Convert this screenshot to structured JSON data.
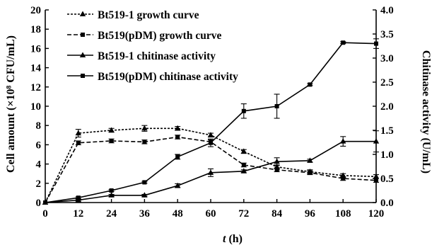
{
  "chart_data": {
    "type": "line",
    "x": [
      0,
      12,
      24,
      36,
      48,
      60,
      72,
      84,
      96,
      108,
      120
    ],
    "xlim": [
      0,
      120
    ],
    "xticks": [
      0,
      12,
      24,
      36,
      48,
      60,
      72,
      84,
      96,
      108,
      120
    ],
    "xlabel_italic": "t",
    "xlabel_rest": " (h)",
    "ylabel_left": "Cell amount (×10⁸ CFU/mL)",
    "ylim_left": [
      0,
      20
    ],
    "yticks_left": [
      "0",
      "2",
      "4",
      "6",
      "8",
      "10",
      "12",
      "14",
      "16",
      "18",
      "20"
    ],
    "ylabel_right": "Chitinase activity (U/mL)",
    "ylim_right": [
      0,
      4.0
    ],
    "yticks_right": [
      "0.0",
      "0.5",
      "1.0",
      "1.5",
      "2.0",
      "2.5",
      "3.0",
      "3.5",
      "4.0"
    ],
    "grid": false,
    "legend_position": "top-left",
    "series": [
      {
        "name": "Bt519-1 growth curve",
        "axis": "left",
        "style": "dashdot",
        "marker": "triangle",
        "values": [
          0,
          7.2,
          7.5,
          7.7,
          7.7,
          7.0,
          5.3,
          3.7,
          3.2,
          2.8,
          2.7
        ],
        "errors": [
          0,
          0.4,
          0.2,
          0.3,
          0.2,
          0.2,
          0.2,
          0.2,
          0.2,
          0.2,
          0.2
        ]
      },
      {
        "name": "Bt519(pDM) growth curve",
        "axis": "left",
        "style": "dashed",
        "marker": "square",
        "values": [
          0,
          6.2,
          6.4,
          6.3,
          6.8,
          6.3,
          3.9,
          3.4,
          3.1,
          2.5,
          2.3
        ],
        "errors": [
          0,
          0.2,
          0.2,
          0.2,
          0.2,
          0.2,
          0.2,
          0.2,
          0.2,
          0.2,
          0.2
        ]
      },
      {
        "name": "Bt519-1 chitinase activity",
        "axis": "right",
        "style": "solid",
        "marker": "triangle",
        "values": [
          0,
          0.05,
          0.15,
          0.15,
          0.35,
          0.62,
          0.65,
          0.85,
          0.87,
          1.27,
          1.27
        ],
        "errors": [
          0,
          0.02,
          0.02,
          0.02,
          0.04,
          0.08,
          0.03,
          0.08,
          0.03,
          0.1,
          0.22
        ]
      },
      {
        "name": "Bt519(pDM) chitinase activity",
        "axis": "right",
        "style": "solid",
        "marker": "square",
        "values": [
          0,
          0.1,
          0.25,
          0.42,
          0.95,
          1.24,
          1.9,
          2.0,
          2.45,
          3.32,
          3.3
        ],
        "errors": [
          0,
          0.02,
          0.02,
          0.02,
          0.05,
          0.08,
          0.15,
          0.25,
          0.02,
          0.02,
          0.1
        ]
      }
    ]
  }
}
